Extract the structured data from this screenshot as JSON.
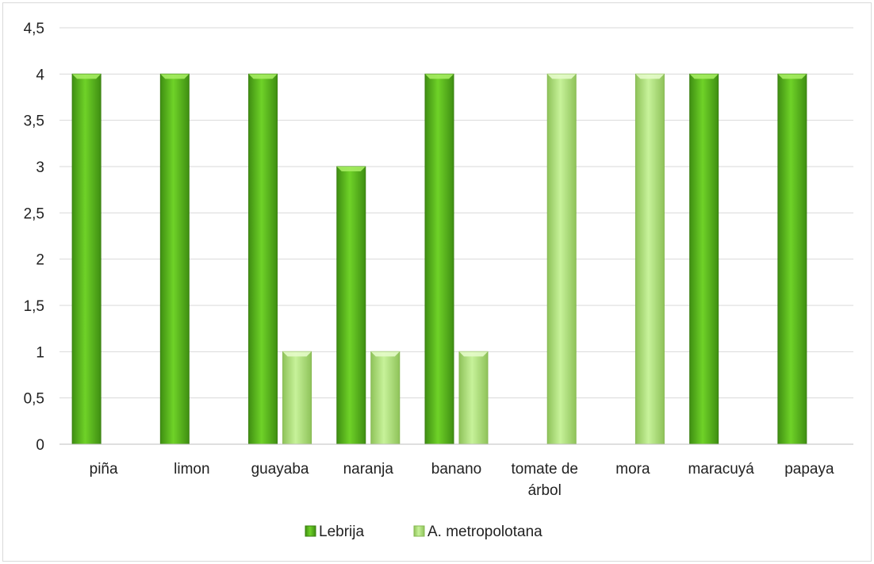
{
  "chart_data": {
    "type": "bar",
    "categories": [
      "piña",
      "limon",
      "guayaba",
      "naranja",
      "banano",
      "tomate de árbol",
      "mora",
      "maracuyá",
      "papaya"
    ],
    "series": [
      {
        "name": "Lebrija",
        "values": [
          4,
          4,
          4,
          3,
          4,
          0,
          0,
          4,
          4
        ],
        "color": "#5dbf1f"
      },
      {
        "name": "A. metropolotana",
        "values": [
          0,
          0,
          1,
          1,
          1,
          4,
          4,
          0,
          0
        ],
        "color": "#b9ec84"
      }
    ],
    "y_ticks": [
      "0",
      "0,5",
      "1",
      "1,5",
      "2",
      "2,5",
      "3",
      "3,5",
      "4",
      "4,5"
    ],
    "ylim": [
      0,
      4.5
    ],
    "grid": true,
    "legend_position": "bottom",
    "title": "",
    "xlabel": "",
    "ylabel": ""
  }
}
